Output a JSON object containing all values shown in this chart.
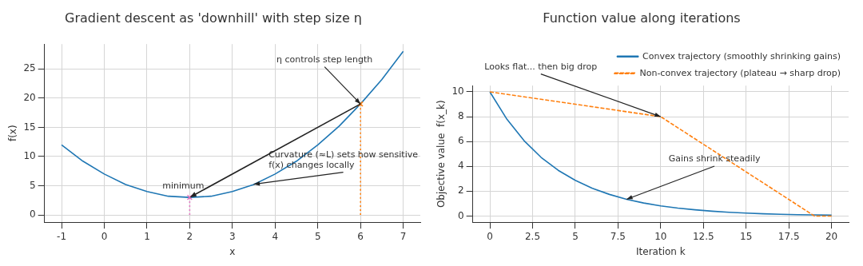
{
  "chart_data": [
    {
      "type": "line",
      "title": "Gradient descent as 'downhill' with step size η",
      "xlabel": "x",
      "ylabel": "f(x)",
      "xlim": [
        -1.4,
        7.4
      ],
      "xticks": [
        -1,
        0,
        1,
        2,
        3,
        4,
        5,
        6,
        7
      ],
      "ylim": [
        -1.25,
        29.25
      ],
      "yticks": [
        0,
        5,
        10,
        15,
        20,
        25
      ],
      "grid": true,
      "legend": false,
      "series": [
        {
          "color": "#1f77b4",
          "x": [
            -1,
            -0.5,
            0,
            0.5,
            1,
            1.5,
            2,
            2.5,
            3,
            3.5,
            4,
            4.5,
            5,
            5.5,
            6,
            6.5,
            7
          ],
          "values": [
            12,
            9.2,
            7,
            5.2,
            4,
            3.2,
            3,
            3.2,
            4,
            5.2,
            7,
            9.2,
            12,
            15.2,
            19,
            23.2,
            28
          ]
        },
        {
          "type": "line",
          "color": "#ff7f0e",
          "line_style": "dotted",
          "x": [
            6,
            6
          ],
          "values": [
            0,
            19
          ]
        },
        {
          "type": "line",
          "color": "#e377c2",
          "line_style": "dotted",
          "x": [
            2,
            2
          ],
          "values": [
            0,
            3
          ]
        },
        {
          "type": "scatter",
          "color": "#ff7f0e",
          "marker": "cross",
          "x": [
            6
          ],
          "values": [
            19
          ]
        },
        {
          "type": "scatter",
          "color": "#e377c2",
          "marker": "cross",
          "x": [
            2
          ],
          "values": [
            3
          ]
        }
      ],
      "annotations": [
        {
          "text": "minimum",
          "x": 2,
          "y": 3
        },
        {
          "text": "η controls step length",
          "x": 6,
          "y": 19
        },
        {
          "text": "Curvature (≈L) sets how sensitive\nf(x) changes locally",
          "x": 3.5,
          "y": 5.25
        }
      ]
    },
    {
      "type": "line",
      "title": "Function value along iterations",
      "xlabel": "Iteration k",
      "ylabel": "Objective value  f(x_k)",
      "xlim": [
        -1,
        21
      ],
      "xticks": [
        0,
        2.5,
        5,
        7.5,
        10,
        12.5,
        15,
        17.5,
        20
      ],
      "ylim": [
        -0.5,
        10.5
      ],
      "yticks": [
        0,
        2,
        4,
        6,
        8,
        10
      ],
      "grid": true,
      "legend": "top right",
      "series": [
        {
          "name": "Convex trajectory (smoothly shrinking gains)",
          "color": "#1f77b4",
          "x": [
            0,
            1,
            2,
            3,
            4,
            5,
            6,
            7,
            8,
            9,
            10,
            11,
            12,
            13,
            14,
            15,
            16,
            17,
            18,
            19,
            20
          ],
          "values": [
            10,
            7.79,
            6.07,
            4.72,
            3.68,
            2.87,
            2.23,
            1.74,
            1.35,
            1.05,
            0.82,
            0.64,
            0.5,
            0.39,
            0.3,
            0.24,
            0.18,
            0.14,
            0.11,
            0.09,
            0.07
          ]
        },
        {
          "name": "Non-convex trajectory (plateau → sharp drop)",
          "color": "#ff7f0e",
          "line_style": "dashed",
          "x": [
            0,
            10,
            19,
            20
          ],
          "values": [
            10,
            8,
            0,
            0
          ]
        }
      ],
      "annotations": [
        {
          "text": "Looks flat... then big drop",
          "x": 10,
          "y": 8
        },
        {
          "text": "Gains shrink steadily",
          "x": 8,
          "y": 1.35
        }
      ]
    }
  ]
}
